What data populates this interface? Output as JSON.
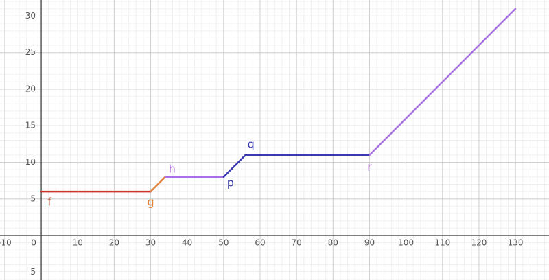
{
  "chart_data": {
    "type": "line",
    "xlim": [
      -11.3,
      139.2
    ],
    "ylim": [
      -6.1,
      32.2
    ],
    "xticks": [
      -10,
      0,
      10,
      20,
      30,
      40,
      50,
      60,
      70,
      80,
      90,
      100,
      110,
      120,
      130
    ],
    "yticks": [
      -5,
      5,
      10,
      15,
      20,
      25,
      30
    ],
    "grid": true,
    "series": [
      {
        "name": "f",
        "color": "#cc3333",
        "x": [
          0,
          30
        ],
        "values": [
          6,
          6
        ]
      },
      {
        "name": "g",
        "color": "#e0803a",
        "x": [
          30,
          34
        ],
        "values": [
          6,
          8
        ]
      },
      {
        "name": "h",
        "color": "#a870e0",
        "x": [
          34,
          50
        ],
        "values": [
          8,
          8
        ]
      },
      {
        "name": "p",
        "color": "#3a3ab0",
        "x": [
          50,
          56
        ],
        "values": [
          8,
          11
        ]
      },
      {
        "name": "q",
        "color": "#3a3ab0",
        "x": [
          56,
          90
        ],
        "values": [
          11,
          11
        ]
      },
      {
        "name": "r",
        "color": "#a870e0",
        "x": [
          90,
          130
        ],
        "values": [
          11,
          31
        ]
      }
    ]
  }
}
